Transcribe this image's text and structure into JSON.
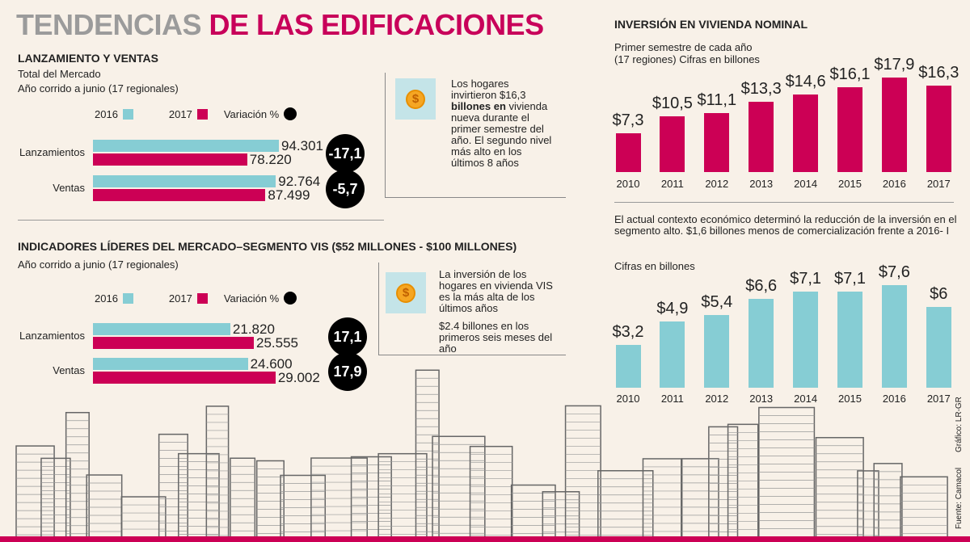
{
  "title": {
    "part1": "TENDENCIAS",
    "part2": "DE LAS EDIFICACIONES"
  },
  "colors": {
    "teal": "#86cdd4",
    "pink": "#cc0055",
    "gray_title": "#9b9b9b",
    "background": "#f8f1e8"
  },
  "legend": {
    "y2016": "2016",
    "y2017": "2017",
    "variation": "Variación %"
  },
  "chart_data": [
    {
      "type": "bar",
      "orientation": "horizontal",
      "title": "LANZAMIENTO Y VENTAS",
      "subtitle": [
        "Total del Mercado",
        "Año corrido a junio (17 regionales)"
      ],
      "categories": [
        "Lanzamientos",
        "Ventas"
      ],
      "series": [
        {
          "name": "2016",
          "values": [
            94301,
            92764
          ],
          "labels": [
            "94.301",
            "92.764"
          ]
        },
        {
          "name": "2017",
          "values": [
            78220,
            87499
          ],
          "labels": [
            "78.220",
            "87.499"
          ]
        }
      ],
      "variation": [
        "-17,1",
        "-5,7"
      ],
      "xmax": 100000
    },
    {
      "type": "bar",
      "orientation": "horizontal",
      "title": "INDICADORES LÍDERES DEL MERCADO–SEGMENTO VIS ($52 MILLONES - $100 MILLONES)",
      "subtitle": [
        "Año corrido a junio (17 regionales)"
      ],
      "categories": [
        "Lanzamientos",
        "Ventas"
      ],
      "series": [
        {
          "name": "2016",
          "values": [
            21820,
            24600
          ],
          "labels": [
            "21.820",
            "24.600"
          ]
        },
        {
          "name": "2017",
          "values": [
            25555,
            29002
          ],
          "labels": [
            "25.555",
            "29.002"
          ]
        }
      ],
      "variation": [
        "17,1",
        "17,9"
      ],
      "xmax": 30000
    },
    {
      "type": "bar",
      "title": "INVERSIÓN EN VIVIENDA NOMINAL",
      "subtitle": [
        "Primer semestre de cada año",
        "(17 regiones) Cifras en billones"
      ],
      "categories": [
        "2010",
        "2011",
        "2012",
        "2013",
        "2014",
        "2015",
        "2016",
        "2017"
      ],
      "values": [
        7.3,
        10.5,
        11.1,
        13.3,
        14.6,
        16.1,
        17.9,
        16.3
      ],
      "labels": [
        "$7,3",
        "$10,5",
        "$11,1",
        "$13,3",
        "$14,6",
        "$16,1",
        "$17,9",
        "$16,3"
      ],
      "ylim": [
        0,
        20
      ]
    },
    {
      "type": "bar",
      "subtitle": [
        "El actual contexto económico determinó la reducción de la inversión en el segmento alto. $1,6 billones menos de comercialización frente a 2016- I",
        "Cifras en billones"
      ],
      "categories": [
        "2010",
        "2011",
        "2012",
        "2013",
        "2014",
        "2015",
        "2016",
        "2017"
      ],
      "values": [
        3.2,
        4.9,
        5.4,
        6.6,
        7.1,
        7.1,
        7.6,
        6
      ],
      "labels": [
        "$3,2",
        "$4,9",
        "$5,4",
        "$6,6",
        "$7,1",
        "$7,1",
        "$7,6",
        "$6"
      ],
      "ylim": [
        0,
        8
      ]
    }
  ],
  "info1": {
    "icon": "dollar-coin-icon",
    "text": "Los hogares invirtieron $16,3",
    "bold": "billones en",
    "rest": "vivienda nueva durante el primer semestre del año. El segundo nivel más alto en los últimos 8 años"
  },
  "info2": {
    "icon": "dollar-coin-icon",
    "text1": "La inversión de los hogares en vivienda VIS es la más alta de los últimos años",
    "text2": "$2.4 billones en los primeros seis meses del año"
  },
  "credits": {
    "graphic": "Gráfico: LR-GR",
    "source": "Fuente: Camacol"
  }
}
